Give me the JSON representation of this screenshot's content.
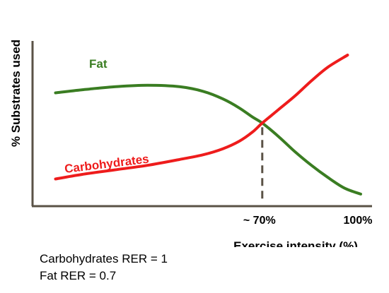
{
  "chart_data": {
    "type": "line",
    "title": "",
    "xlabel": "Exercise intensity (%)",
    "ylabel": "% Substrates used",
    "xlim": [
      0,
      100
    ],
    "ylim": [
      0,
      100
    ],
    "grid": false,
    "legend": "none",
    "xticks": [
      {
        "value": 70,
        "label": "~ 70%"
      },
      {
        "value": 100,
        "label": "100%"
      }
    ],
    "crossover": {
      "x": 70,
      "y": 55,
      "line_style": "dashed",
      "color": "#5a5246"
    },
    "series": [
      {
        "name": "Fat",
        "color": "#3a7d22",
        "x": [
          7,
          15,
          25,
          35,
          45,
          52,
          58,
          63,
          67,
          70,
          75,
          80,
          85,
          90,
          95,
          100
        ],
        "y": [
          75,
          77,
          79,
          80,
          79,
          76,
          71,
          65,
          59,
          55,
          46,
          36,
          27,
          19,
          12,
          8
        ]
      },
      {
        "name": "Carbohydrates",
        "color": "#ee1c1c",
        "x": [
          7,
          15,
          25,
          35,
          45,
          52,
          58,
          63,
          67,
          70,
          75,
          80,
          85,
          90,
          96
        ],
        "y": [
          18,
          21,
          24,
          27,
          31,
          34,
          38,
          43,
          49,
          55,
          64,
          73,
          83,
          92,
          100
        ]
      }
    ]
  },
  "notes": {
    "carb_rer": "Carbohydrates RER = 1",
    "fat_rer": "Fat RER = 0.7"
  }
}
